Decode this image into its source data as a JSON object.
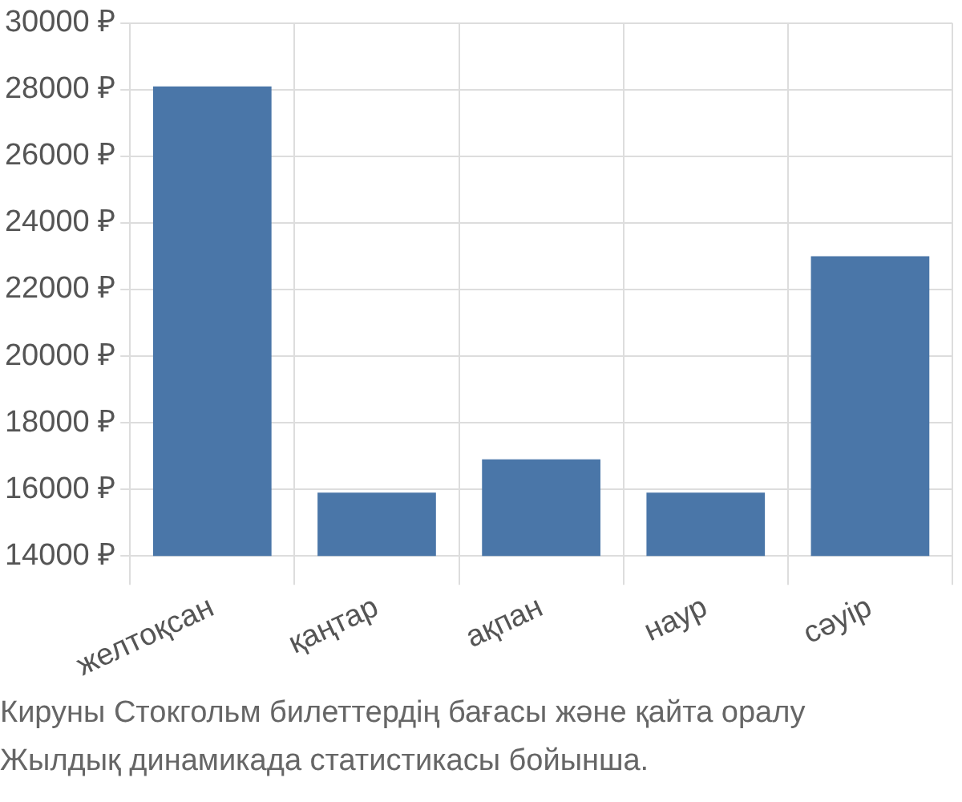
{
  "chart_data": {
    "type": "bar",
    "categories": [
      "желтоқсан",
      "қаңтар",
      "ақпан",
      "наур",
      "сәуір"
    ],
    "values": [
      28100,
      15900,
      16900,
      15900,
      23000
    ],
    "color": "#4a76a8",
    "ylim": [
      14000,
      30000
    ],
    "yticks": [
      {
        "value": 14000,
        "label": "14000 ₽"
      },
      {
        "value": 16000,
        "label": "16000 ₽"
      },
      {
        "value": 18000,
        "label": "18000 ₽"
      },
      {
        "value": 20000,
        "label": "20000 ₽"
      },
      {
        "value": 22000,
        "label": "22000 ₽"
      },
      {
        "value": 24000,
        "label": "24000 ₽"
      },
      {
        "value": 26000,
        "label": "26000 ₽"
      },
      {
        "value": 28000,
        "label": "28000 ₽"
      },
      {
        "value": 30000,
        "label": "30000 ₽"
      }
    ],
    "grid": true,
    "annotations": [
      "Кируны Стокгольм билеттердің бағасы және қайта оралу",
      "Жылдық динамикада статистикасы бойынша."
    ]
  }
}
